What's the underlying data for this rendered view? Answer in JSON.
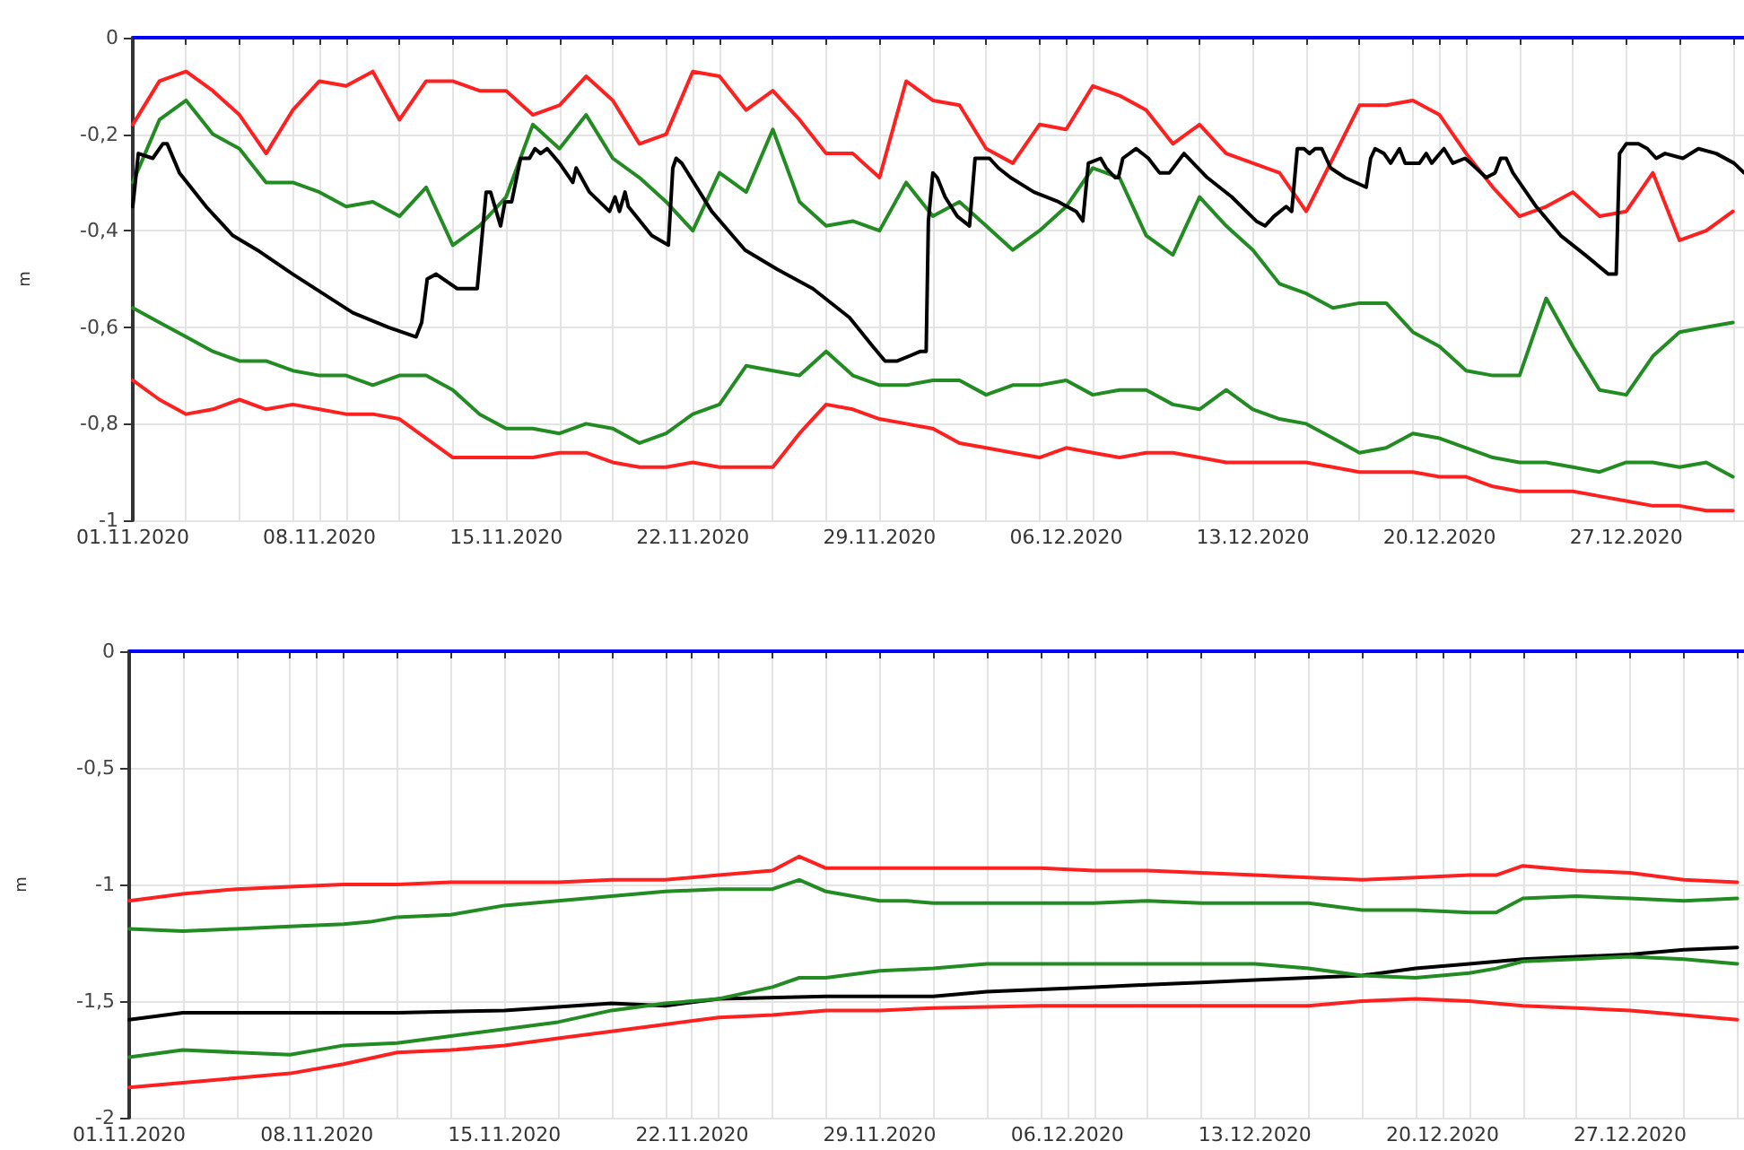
{
  "chart_data": [
    {
      "type": "line",
      "ylabel": "m",
      "marker": "none",
      "line_style": "solid",
      "grid": true,
      "xlim": [
        "2020-11-01",
        "2020-12-31T10:00"
      ],
      "xticks": [
        {
          "value": "2020-11-01",
          "label": "01.11.2020"
        },
        {
          "value": "2020-11-03",
          "label": null
        },
        {
          "value": "2020-11-05",
          "label": null
        },
        {
          "value": "2020-11-07",
          "label": null
        },
        {
          "value": "2020-11-08",
          "label": "08.11.2020"
        },
        {
          "value": "2020-11-09",
          "label": null
        },
        {
          "value": "2020-11-11",
          "label": null
        },
        {
          "value": "2020-11-13",
          "label": null
        },
        {
          "value": "2020-11-15",
          "label": "15.11.2020"
        },
        {
          "value": "2020-11-17",
          "label": null
        },
        {
          "value": "2020-11-19",
          "label": null
        },
        {
          "value": "2020-11-21",
          "label": null
        },
        {
          "value": "2020-11-22",
          "label": "22.11.2020"
        },
        {
          "value": "2020-11-23",
          "label": null
        },
        {
          "value": "2020-11-25",
          "label": null
        },
        {
          "value": "2020-11-27",
          "label": null
        },
        {
          "value": "2020-11-29",
          "label": "29.11.2020"
        },
        {
          "value": "2020-12-01",
          "label": null
        },
        {
          "value": "2020-12-03",
          "label": null
        },
        {
          "value": "2020-12-05",
          "label": null
        },
        {
          "value": "2020-12-06",
          "label": "06.12.2020"
        },
        {
          "value": "2020-12-07",
          "label": null
        },
        {
          "value": "2020-12-09",
          "label": null
        },
        {
          "value": "2020-12-11",
          "label": null
        },
        {
          "value": "2020-12-13",
          "label": "13.12.2020"
        },
        {
          "value": "2020-12-15",
          "label": null
        },
        {
          "value": "2020-12-17",
          "label": null
        },
        {
          "value": "2020-12-19",
          "label": null
        },
        {
          "value": "2020-12-20",
          "label": "20.12.2020"
        },
        {
          "value": "2020-12-21",
          "label": null
        },
        {
          "value": "2020-12-23",
          "label": null
        },
        {
          "value": "2020-12-25",
          "label": null
        },
        {
          "value": "2020-12-27",
          "label": "27.12.2020"
        },
        {
          "value": "2020-12-29",
          "label": null
        },
        {
          "value": "2020-12-31",
          "label": null
        }
      ],
      "ylim": [
        -1,
        0
      ],
      "yticks": [
        {
          "value": 0,
          "label": "0"
        },
        {
          "value": -0.2,
          "label": "-0,2"
        },
        {
          "value": -0.4,
          "label": "-0,4"
        },
        {
          "value": -0.6,
          "label": "-0,6"
        },
        {
          "value": -0.8,
          "label": "-0,8"
        },
        {
          "value": -1,
          "label": "-1"
        }
      ],
      "ref_lines": [
        {
          "axis": "y",
          "value": 0,
          "color": "#0000ff"
        }
      ],
      "x": [
        "2020-11-01",
        "2020-11-02",
        "2020-11-03",
        "2020-11-04",
        "2020-11-05",
        "2020-11-06",
        "2020-11-07",
        "2020-11-08",
        "2020-11-09",
        "2020-11-10",
        "2020-11-11",
        "2020-11-12",
        "2020-11-13",
        "2020-11-14",
        "2020-11-15",
        "2020-11-16",
        "2020-11-17",
        "2020-11-18",
        "2020-11-19",
        "2020-11-20",
        "2020-11-21",
        "2020-11-22",
        "2020-11-23",
        "2020-11-24",
        "2020-11-25",
        "2020-11-26",
        "2020-11-27",
        "2020-11-28",
        "2020-11-29",
        "2020-11-30",
        "2020-12-01",
        "2020-12-02",
        "2020-12-03",
        "2020-12-04",
        "2020-12-05",
        "2020-12-06",
        "2020-12-07",
        "2020-12-08",
        "2020-12-09",
        "2020-12-10",
        "2020-12-11",
        "2020-12-12",
        "2020-12-13",
        "2020-12-14",
        "2020-12-15",
        "2020-12-16",
        "2020-12-17",
        "2020-12-18",
        "2020-12-19",
        "2020-12-20",
        "2020-12-21",
        "2020-12-22",
        "2020-12-23",
        "2020-12-24",
        "2020-12-25",
        "2020-12-26",
        "2020-12-27",
        "2020-12-28",
        "2020-12-29",
        "2020-12-30",
        "2020-12-31"
      ],
      "series": [
        {
          "color": "#ff2020",
          "values": [
            -0.18,
            -0.09,
            -0.07,
            -0.11,
            -0.16,
            -0.24,
            -0.15,
            -0.09,
            -0.1,
            -0.07,
            -0.17,
            -0.09,
            -0.09,
            -0.11,
            -0.11,
            -0.16,
            -0.14,
            -0.08,
            -0.13,
            -0.22,
            -0.2,
            -0.07,
            -0.08,
            -0.15,
            -0.11,
            -0.17,
            -0.24,
            -0.24,
            -0.29,
            -0.09,
            -0.13,
            -0.14,
            -0.23,
            -0.26,
            -0.18,
            -0.19,
            -0.1,
            -0.12,
            -0.15,
            -0.22,
            -0.18,
            -0.24,
            -0.26,
            -0.28,
            -0.36,
            -0.25,
            -0.14,
            -0.14,
            -0.13,
            -0.16,
            -0.24,
            -0.31,
            -0.37,
            -0.35,
            -0.32,
            -0.37,
            -0.36,
            -0.28,
            -0.42,
            -0.4,
            -0.36
          ]
        },
        {
          "color": "#228b22",
          "values": [
            -0.3,
            -0.17,
            -0.13,
            -0.2,
            -0.23,
            -0.3,
            -0.3,
            -0.32,
            -0.35,
            -0.34,
            -0.37,
            -0.31,
            -0.43,
            -0.39,
            -0.33,
            -0.18,
            -0.23,
            -0.16,
            -0.25,
            -0.29,
            -0.34,
            -0.4,
            -0.28,
            -0.32,
            -0.19,
            -0.34,
            -0.39,
            -0.38,
            -0.4,
            -0.3,
            -0.37,
            -0.34,
            -0.39,
            -0.44,
            -0.4,
            -0.35,
            -0.27,
            -0.29,
            -0.41,
            -0.45,
            -0.33,
            -0.39,
            -0.44,
            -0.51,
            -0.53,
            -0.56,
            -0.55,
            -0.55,
            -0.61,
            -0.64,
            -0.69,
            -0.7,
            -0.7,
            -0.54,
            -0.64,
            -0.73,
            -0.74,
            -0.66,
            -0.61,
            -0.6,
            -0.59
          ]
        },
        {
          "color": "#000000",
          "x": [
            "2020-11-01T00:00",
            "2020-11-01T05:00",
            "2020-11-01T18:00",
            "2020-11-02T03:00",
            "2020-11-02T07:00",
            "2020-11-02T18:00",
            "2020-11-03T18:00",
            "2020-11-04T18:00",
            "2020-11-05T16:00",
            "2020-11-07T00:00",
            "2020-11-08T03:00",
            "2020-11-09T06:00",
            "2020-11-10T14:00",
            "2020-11-11T15:00",
            "2020-11-11T20:00",
            "2020-11-12T01:00",
            "2020-11-12T09:00",
            "2020-11-13T04:00",
            "2020-11-13T22:00",
            "2020-11-14T06:00",
            "2020-11-14T10:00",
            "2020-11-14T19:00",
            "2020-11-14T23:00",
            "2020-11-15T05:00",
            "2020-11-15T13:00",
            "2020-11-15T21:00",
            "2020-11-16T02:00",
            "2020-11-16T07:00",
            "2020-11-16T13:00",
            "2020-11-17T00:00",
            "2020-11-17T12:00",
            "2020-11-17T15:00",
            "2020-11-18T03:00",
            "2020-11-18T21:00",
            "2020-11-19T02:00",
            "2020-11-19T06:00",
            "2020-11-19T11:00",
            "2020-11-19T14:00",
            "2020-11-20T11:00",
            "2020-11-21T02:00",
            "2020-11-21T06:00",
            "2020-11-21T09:00",
            "2020-11-21T14:00",
            "2020-11-22T17:00",
            "2020-11-23T23:00",
            "2020-11-25T04:00",
            "2020-11-26T12:00",
            "2020-11-27T21:00",
            "2020-11-28T18:00",
            "2020-11-29T05:00",
            "2020-11-29T16:00",
            "2020-11-30T13:00",
            "2020-11-30T18:00",
            "2020-11-30T20:00",
            "2020-12-01T00:00",
            "2020-12-01T04:00",
            "2020-12-01T11:00",
            "2020-12-01T22:00",
            "2020-12-02T09:00",
            "2020-12-02T14:00",
            "2020-12-03T03:00",
            "2020-12-03T11:00",
            "2020-12-03T22:00",
            "2020-12-04T19:00",
            "2020-12-05T17:00",
            "2020-12-06T09:00",
            "2020-12-06T15:00",
            "2020-12-06T20:00",
            "2020-12-07T07:00",
            "2020-12-07T12:00",
            "2020-12-07T20:00",
            "2020-12-07T23:00",
            "2020-12-08T03:00",
            "2020-12-08T15:00",
            "2020-12-09T02:00",
            "2020-12-09T12:00",
            "2020-12-09T21:00",
            "2020-12-10T10:00",
            "2020-12-11T07:00",
            "2020-12-12T05:00",
            "2020-12-13T03:00",
            "2020-12-13T11:00",
            "2020-12-13T19:00",
            "2020-12-14T06:00",
            "2020-12-14T11:00",
            "2020-12-14T16:00",
            "2020-12-14T22:00",
            "2020-12-15T03:00",
            "2020-12-15T08:00",
            "2020-12-15T14:00",
            "2020-12-15T22:00",
            "2020-12-16T11:00",
            "2020-12-17T06:00",
            "2020-12-17T10:00",
            "2020-12-17T14:00",
            "2020-12-17T22:00",
            "2020-12-18T04:00",
            "2020-12-18T12:00",
            "2020-12-18T17:00",
            "2020-12-19T06:00",
            "2020-12-19T12:00",
            "2020-12-19T17:00",
            "2020-12-20T04:00",
            "2020-12-20T12:00",
            "2020-12-20T23:00",
            "2020-12-21T04:00",
            "2020-12-21T18:00",
            "2020-12-22T02:00",
            "2020-12-22T07:00",
            "2020-12-22T12:00",
            "2020-12-22T18:00",
            "2020-12-23T15:00",
            "2020-12-24T13:00",
            "2020-12-25T11:00",
            "2020-12-26T08:00",
            "2020-12-26T15:00",
            "2020-12-26T18:00",
            "2020-12-27T00:00",
            "2020-12-27T11:00",
            "2020-12-27T19:00",
            "2020-12-28T03:00",
            "2020-12-28T11:00",
            "2020-12-29T03:00",
            "2020-12-29T17:00",
            "2020-12-30T09:00",
            "2020-12-31T01:00",
            "2020-12-31T10:00"
          ],
          "values": [
            -0.35,
            -0.24,
            -0.25,
            -0.22,
            -0.22,
            -0.28,
            -0.35,
            -0.41,
            -0.44,
            -0.49,
            -0.53,
            -0.57,
            -0.6,
            -0.62,
            -0.59,
            -0.5,
            -0.49,
            -0.52,
            -0.52,
            -0.32,
            -0.32,
            -0.39,
            -0.34,
            -0.34,
            -0.25,
            -0.25,
            -0.23,
            -0.24,
            -0.23,
            -0.26,
            -0.3,
            -0.27,
            -0.32,
            -0.36,
            -0.33,
            -0.36,
            -0.32,
            -0.35,
            -0.41,
            -0.43,
            -0.27,
            -0.25,
            -0.26,
            -0.36,
            -0.44,
            -0.48,
            -0.52,
            -0.58,
            -0.64,
            -0.67,
            -0.67,
            -0.65,
            -0.65,
            -0.38,
            -0.28,
            -0.29,
            -0.33,
            -0.37,
            -0.39,
            -0.25,
            -0.25,
            -0.27,
            -0.29,
            -0.32,
            -0.34,
            -0.36,
            -0.38,
            -0.26,
            -0.25,
            -0.27,
            -0.29,
            -0.29,
            -0.25,
            -0.23,
            -0.25,
            -0.28,
            -0.28,
            -0.24,
            -0.29,
            -0.33,
            -0.38,
            -0.39,
            -0.37,
            -0.35,
            -0.36,
            -0.23,
            -0.23,
            -0.24,
            -0.23,
            -0.23,
            -0.27,
            -0.29,
            -0.31,
            -0.25,
            -0.23,
            -0.24,
            -0.26,
            -0.23,
            -0.26,
            -0.26,
            -0.24,
            -0.26,
            -0.23,
            -0.26,
            -0.25,
            -0.26,
            -0.29,
            -0.28,
            -0.25,
            -0.25,
            -0.28,
            -0.35,
            -0.41,
            -0.45,
            -0.49,
            -0.49,
            -0.24,
            -0.22,
            -0.22,
            -0.23,
            -0.25,
            -0.24,
            -0.25,
            -0.23,
            -0.24,
            -0.26,
            -0.28
          ]
        },
        {
          "color": "#228b22",
          "values": [
            -0.56,
            -0.59,
            -0.62,
            -0.65,
            -0.67,
            -0.67,
            -0.69,
            -0.7,
            -0.7,
            -0.72,
            -0.7,
            -0.7,
            -0.73,
            -0.78,
            -0.81,
            -0.81,
            -0.82,
            -0.8,
            -0.81,
            -0.84,
            -0.82,
            -0.78,
            -0.76,
            -0.68,
            -0.69,
            -0.7,
            -0.65,
            -0.7,
            -0.72,
            -0.72,
            -0.71,
            -0.71,
            -0.74,
            -0.72,
            -0.72,
            -0.71,
            -0.74,
            -0.73,
            -0.73,
            -0.76,
            -0.77,
            -0.73,
            -0.77,
            -0.79,
            -0.8,
            -0.83,
            -0.86,
            -0.85,
            -0.82,
            -0.83,
            -0.85,
            -0.87,
            -0.88,
            -0.88,
            -0.89,
            -0.9,
            -0.88,
            -0.88,
            -0.89,
            -0.88,
            -0.91
          ]
        },
        {
          "color": "#ff2020",
          "values": [
            -0.71,
            -0.75,
            -0.78,
            -0.77,
            -0.75,
            -0.77,
            -0.76,
            -0.77,
            -0.78,
            -0.78,
            -0.79,
            -0.83,
            -0.87,
            -0.87,
            -0.87,
            -0.87,
            -0.86,
            -0.86,
            -0.88,
            -0.89,
            -0.89,
            -0.88,
            -0.89,
            -0.89,
            -0.89,
            -0.82,
            -0.76,
            -0.77,
            -0.79,
            -0.8,
            -0.81,
            -0.84,
            -0.85,
            -0.86,
            -0.87,
            -0.85,
            -0.86,
            -0.87,
            -0.86,
            -0.86,
            -0.87,
            -0.88,
            -0.88,
            -0.88,
            -0.88,
            -0.89,
            -0.9,
            -0.9,
            -0.9,
            -0.91,
            -0.91,
            -0.93,
            -0.94,
            -0.94,
            -0.94,
            -0.95,
            -0.96,
            -0.97,
            -0.97,
            -0.98,
            -0.98
          ]
        }
      ]
    },
    {
      "type": "line",
      "ylabel": "m",
      "marker": "none",
      "line_style": "solid",
      "grid": true,
      "xlim": [
        "2020-11-01",
        "2020-12-31T06:00"
      ],
      "xticks": [
        {
          "value": "2020-11-01",
          "label": "01.11.2020"
        },
        {
          "value": "2020-11-03",
          "label": null
        },
        {
          "value": "2020-11-05",
          "label": null
        },
        {
          "value": "2020-11-07",
          "label": null
        },
        {
          "value": "2020-11-08",
          "label": "08.11.2020"
        },
        {
          "value": "2020-11-09",
          "label": null
        },
        {
          "value": "2020-11-11",
          "label": null
        },
        {
          "value": "2020-11-13",
          "label": null
        },
        {
          "value": "2020-11-15",
          "label": "15.11.2020"
        },
        {
          "value": "2020-11-17",
          "label": null
        },
        {
          "value": "2020-11-19",
          "label": null
        },
        {
          "value": "2020-11-21",
          "label": null
        },
        {
          "value": "2020-11-22",
          "label": "22.11.2020"
        },
        {
          "value": "2020-11-23",
          "label": null
        },
        {
          "value": "2020-11-25",
          "label": null
        },
        {
          "value": "2020-11-27",
          "label": null
        },
        {
          "value": "2020-11-29",
          "label": "29.11.2020"
        },
        {
          "value": "2020-12-01",
          "label": null
        },
        {
          "value": "2020-12-03",
          "label": null
        },
        {
          "value": "2020-12-05",
          "label": null
        },
        {
          "value": "2020-12-06",
          "label": "06.12.2020"
        },
        {
          "value": "2020-12-07",
          "label": null
        },
        {
          "value": "2020-12-09",
          "label": null
        },
        {
          "value": "2020-12-11",
          "label": null
        },
        {
          "value": "2020-12-13",
          "label": "13.12.2020"
        },
        {
          "value": "2020-12-15",
          "label": null
        },
        {
          "value": "2020-12-17",
          "label": null
        },
        {
          "value": "2020-12-19",
          "label": null
        },
        {
          "value": "2020-12-20",
          "label": "20.12.2020"
        },
        {
          "value": "2020-12-21",
          "label": null
        },
        {
          "value": "2020-12-23",
          "label": null
        },
        {
          "value": "2020-12-25",
          "label": null
        },
        {
          "value": "2020-12-27",
          "label": "27.12.2020"
        },
        {
          "value": "2020-12-29",
          "label": null
        },
        {
          "value": "2020-12-31",
          "label": null
        }
      ],
      "ylim": [
        -2,
        0
      ],
      "yticks": [
        {
          "value": 0,
          "label": "0"
        },
        {
          "value": -0.5,
          "label": "-0,5"
        },
        {
          "value": -1,
          "label": "-1"
        },
        {
          "value": -1.5,
          "label": "-1,5"
        },
        {
          "value": -2,
          "label": "-2"
        }
      ],
      "ref_lines": [
        {
          "axis": "y",
          "value": 0,
          "color": "#0000ff"
        }
      ],
      "series": [
        {
          "color": "#ff2020",
          "x": [
            "2020-11-01",
            "2020-11-03",
            "2020-11-05",
            "2020-11-07",
            "2020-11-09",
            "2020-11-11",
            "2020-11-13",
            "2020-11-15",
            "2020-11-17",
            "2020-11-19",
            "2020-11-21",
            "2020-11-23",
            "2020-11-25",
            "2020-11-26",
            "2020-11-27",
            "2020-11-29",
            "2020-12-01",
            "2020-12-03",
            "2020-12-05",
            "2020-12-07",
            "2020-12-09",
            "2020-12-11",
            "2020-12-13",
            "2020-12-15",
            "2020-12-17",
            "2020-12-19",
            "2020-12-21",
            "2020-12-22",
            "2020-12-23",
            "2020-12-25",
            "2020-12-27",
            "2020-12-29",
            "2020-12-31"
          ],
          "values": [
            -1.07,
            -1.04,
            -1.02,
            -1.01,
            -1.0,
            -1.0,
            -0.99,
            -0.99,
            -0.99,
            -0.98,
            -0.98,
            -0.96,
            -0.94,
            -0.88,
            -0.93,
            -0.93,
            -0.93,
            -0.93,
            -0.93,
            -0.94,
            -0.94,
            -0.95,
            -0.96,
            -0.97,
            -0.98,
            -0.97,
            -0.96,
            -0.96,
            -0.92,
            -0.94,
            -0.95,
            -0.98,
            -0.99
          ]
        },
        {
          "color": "#228b22",
          "x": [
            "2020-11-01",
            "2020-11-03",
            "2020-11-05",
            "2020-11-07",
            "2020-11-09",
            "2020-11-10",
            "2020-11-11",
            "2020-11-13",
            "2020-11-15",
            "2020-11-17",
            "2020-11-19",
            "2020-11-21",
            "2020-11-23",
            "2020-11-25",
            "2020-11-26",
            "2020-11-27",
            "2020-11-29",
            "2020-11-30",
            "2020-12-01",
            "2020-12-03",
            "2020-12-05",
            "2020-12-07",
            "2020-12-09",
            "2020-12-11",
            "2020-12-13",
            "2020-12-15",
            "2020-12-17",
            "2020-12-19",
            "2020-12-21",
            "2020-12-22",
            "2020-12-23",
            "2020-12-25",
            "2020-12-27",
            "2020-12-29",
            "2020-12-31"
          ],
          "values": [
            -1.19,
            -1.2,
            -1.19,
            -1.18,
            -1.17,
            -1.16,
            -1.14,
            -1.13,
            -1.09,
            -1.07,
            -1.05,
            -1.03,
            -1.02,
            -1.02,
            -0.98,
            -1.03,
            -1.07,
            -1.07,
            -1.08,
            -1.08,
            -1.08,
            -1.08,
            -1.07,
            -1.08,
            -1.08,
            -1.08,
            -1.11,
            -1.11,
            -1.12,
            -1.12,
            -1.06,
            -1.05,
            -1.06,
            -1.07,
            -1.06
          ]
        },
        {
          "color": "#000000",
          "x": [
            "2020-11-01",
            "2020-11-03",
            "2020-11-07",
            "2020-11-11",
            "2020-11-15",
            "2020-11-19",
            "2020-11-21",
            "2020-11-23",
            "2020-11-27",
            "2020-11-29",
            "2020-12-01",
            "2020-12-03",
            "2020-12-05",
            "2020-12-07",
            "2020-12-09",
            "2020-12-11",
            "2020-12-13",
            "2020-12-15",
            "2020-12-17",
            "2020-12-19",
            "2020-12-21",
            "2020-12-23",
            "2020-12-25",
            "2020-12-27",
            "2020-12-29",
            "2020-12-31"
          ],
          "values": [
            -1.58,
            -1.55,
            -1.55,
            -1.55,
            -1.54,
            -1.51,
            -1.52,
            -1.49,
            -1.48,
            -1.48,
            -1.48,
            -1.46,
            -1.45,
            -1.44,
            -1.43,
            -1.42,
            -1.41,
            -1.4,
            -1.39,
            -1.36,
            -1.34,
            -1.32,
            -1.31,
            -1.3,
            -1.28,
            -1.27
          ]
        },
        {
          "color": "#228b22",
          "x": [
            "2020-11-01",
            "2020-11-03",
            "2020-11-05",
            "2020-11-07",
            "2020-11-08",
            "2020-11-09",
            "2020-11-11",
            "2020-11-13",
            "2020-11-15",
            "2020-11-17",
            "2020-11-19",
            "2020-11-21",
            "2020-11-23",
            "2020-11-25",
            "2020-11-26",
            "2020-11-27",
            "2020-11-29",
            "2020-12-01",
            "2020-12-03",
            "2020-12-05",
            "2020-12-07",
            "2020-12-09",
            "2020-12-11",
            "2020-12-13",
            "2020-12-15",
            "2020-12-17",
            "2020-12-19",
            "2020-12-21",
            "2020-12-22",
            "2020-12-23",
            "2020-12-25",
            "2020-12-27",
            "2020-12-29",
            "2020-12-31"
          ],
          "values": [
            -1.74,
            -1.71,
            -1.72,
            -1.73,
            -1.71,
            -1.69,
            -1.68,
            -1.65,
            -1.62,
            -1.59,
            -1.54,
            -1.51,
            -1.49,
            -1.44,
            -1.4,
            -1.4,
            -1.37,
            -1.36,
            -1.34,
            -1.34,
            -1.34,
            -1.34,
            -1.34,
            -1.34,
            -1.36,
            -1.39,
            -1.4,
            -1.38,
            -1.36,
            -1.33,
            -1.32,
            -1.31,
            -1.32,
            -1.34
          ]
        },
        {
          "color": "#ff2020",
          "x": [
            "2020-11-01",
            "2020-11-03",
            "2020-11-05",
            "2020-11-07",
            "2020-11-09",
            "2020-11-11",
            "2020-11-13",
            "2020-11-15",
            "2020-11-17",
            "2020-11-19",
            "2020-11-21",
            "2020-11-23",
            "2020-11-25",
            "2020-11-27",
            "2020-11-29",
            "2020-12-01",
            "2020-12-05",
            "2020-12-09",
            "2020-12-13",
            "2020-12-15",
            "2020-12-17",
            "2020-12-19",
            "2020-12-21",
            "2020-12-23",
            "2020-12-25",
            "2020-12-27",
            "2020-12-29",
            "2020-12-31"
          ],
          "values": [
            -1.87,
            -1.85,
            -1.83,
            -1.81,
            -1.77,
            -1.72,
            -1.71,
            -1.69,
            -1.66,
            -1.63,
            -1.6,
            -1.57,
            -1.56,
            -1.54,
            -1.54,
            -1.53,
            -1.52,
            -1.52,
            -1.52,
            -1.52,
            -1.5,
            -1.49,
            -1.5,
            -1.52,
            -1.53,
            -1.54,
            -1.56,
            -1.58
          ]
        }
      ]
    }
  ]
}
